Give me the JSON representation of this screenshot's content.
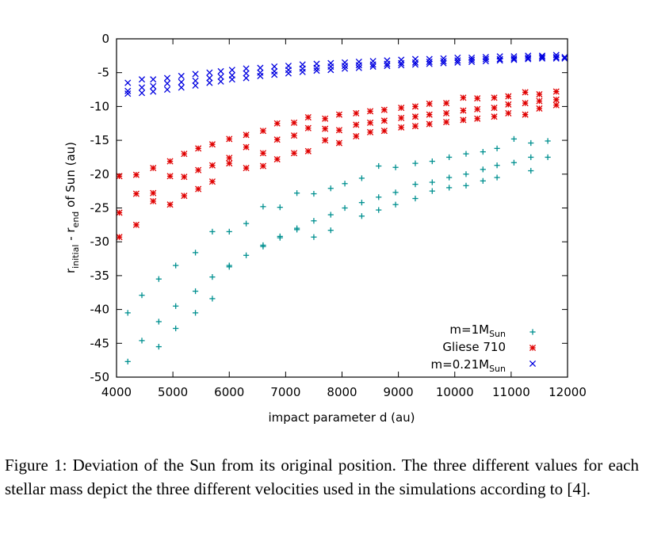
{
  "chart_data": {
    "type": "scatter",
    "xlabel": "impact parameter d (au)",
    "ylabel": {
      "main": "r",
      "sub1": "initial",
      "mid": " - r",
      "sub2": "end",
      "tail": " of Sun (au)"
    },
    "xlim": [
      4000,
      12000
    ],
    "ylim": [
      -50,
      0
    ],
    "xticks": [
      4000,
      5000,
      6000,
      7000,
      8000,
      9000,
      10000,
      11000,
      12000
    ],
    "yticks": [
      0,
      -5,
      -10,
      -15,
      -20,
      -25,
      -30,
      -35,
      -40,
      -45,
      -50
    ],
    "grid": false,
    "legend_position": "bottom-right",
    "series": [
      {
        "name": "m=1M",
        "name_sub": "Sun",
        "marker": "plus",
        "color": "#009090",
        "points": [
          [
            4200,
            -40.5
          ],
          [
            4200,
            -47.7
          ],
          [
            4450,
            -37.9
          ],
          [
            4450,
            -44.6
          ],
          [
            4750,
            -35.5
          ],
          [
            4750,
            -41.8
          ],
          [
            4750,
            -45.5
          ],
          [
            5050,
            -33.5
          ],
          [
            5050,
            -39.5
          ],
          [
            5050,
            -42.8
          ],
          [
            5400,
            -31.6
          ],
          [
            5400,
            -37.3
          ],
          [
            5400,
            -40.5
          ],
          [
            5700,
            -28.5
          ],
          [
            5700,
            -35.2
          ],
          [
            5700,
            -38.4
          ],
          [
            6000,
            -28.5
          ],
          [
            6000,
            -33.5
          ],
          [
            6000,
            -33.7
          ],
          [
            6300,
            -27.3
          ],
          [
            6300,
            -32.0
          ],
          [
            6600,
            -24.8
          ],
          [
            6600,
            -30.7
          ],
          [
            6600,
            -30.5
          ],
          [
            6900,
            -24.9
          ],
          [
            6900,
            -29.4
          ],
          [
            6900,
            -29.2
          ],
          [
            7200,
            -22.8
          ],
          [
            7200,
            -28.2
          ],
          [
            7200,
            -28.0
          ],
          [
            7500,
            -22.9
          ],
          [
            7500,
            -26.9
          ],
          [
            7500,
            -29.3
          ],
          [
            7800,
            -22.1
          ],
          [
            7800,
            -26.0
          ],
          [
            7800,
            -28.3
          ],
          [
            8050,
            -21.4
          ],
          [
            8050,
            -25.0
          ],
          [
            8350,
            -20.6
          ],
          [
            8350,
            -24.2
          ],
          [
            8350,
            -26.2
          ],
          [
            8650,
            -18.8
          ],
          [
            8650,
            -23.4
          ],
          [
            8650,
            -25.3
          ],
          [
            8950,
            -19.0
          ],
          [
            8950,
            -22.7
          ],
          [
            8950,
            -24.5
          ],
          [
            9300,
            -18.4
          ],
          [
            9300,
            -21.5
          ],
          [
            9300,
            -23.6
          ],
          [
            9600,
            -18.1
          ],
          [
            9600,
            -21.2
          ],
          [
            9600,
            -22.5
          ],
          [
            9900,
            -17.5
          ],
          [
            9900,
            -20.5
          ],
          [
            9900,
            -22.0
          ],
          [
            10200,
            -17.0
          ],
          [
            10200,
            -20.0
          ],
          [
            10200,
            -21.7
          ],
          [
            10500,
            -16.7
          ],
          [
            10500,
            -19.3
          ],
          [
            10500,
            -21.0
          ],
          [
            10750,
            -16.2
          ],
          [
            10750,
            -18.7
          ],
          [
            10750,
            -20.5
          ],
          [
            11050,
            -14.8
          ],
          [
            11050,
            -18.3
          ],
          [
            11350,
            -15.4
          ],
          [
            11350,
            -19.5
          ],
          [
            11350,
            -17.5
          ],
          [
            11650,
            -15.1
          ],
          [
            11650,
            -17.5
          ]
        ]
      },
      {
        "name": "Gliese 710",
        "marker": "star",
        "color": "#e00000",
        "points": [
          [
            4050,
            -20.3
          ],
          [
            4050,
            -25.7
          ],
          [
            4050,
            -29.3
          ],
          [
            4350,
            -20.1
          ],
          [
            4350,
            -22.9
          ],
          [
            4350,
            -27.5
          ],
          [
            4650,
            -19.1
          ],
          [
            4650,
            -22.8
          ],
          [
            4650,
            -24.0
          ],
          [
            4950,
            -18.1
          ],
          [
            4950,
            -20.3
          ],
          [
            4950,
            -24.5
          ],
          [
            5200,
            -17.0
          ],
          [
            5200,
            -20.4
          ],
          [
            5200,
            -23.2
          ],
          [
            5450,
            -16.2
          ],
          [
            5450,
            -19.4
          ],
          [
            5450,
            -22.2
          ],
          [
            5700,
            -15.6
          ],
          [
            5700,
            -18.7
          ],
          [
            5700,
            -21.1
          ],
          [
            6000,
            -14.8
          ],
          [
            6000,
            -17.6
          ],
          [
            6000,
            -18.4
          ],
          [
            6300,
            -14.2
          ],
          [
            6300,
            -16.0
          ],
          [
            6300,
            -19.1
          ],
          [
            6600,
            -13.6
          ],
          [
            6600,
            -16.9
          ],
          [
            6600,
            -18.8
          ],
          [
            6850,
            -12.5
          ],
          [
            6850,
            -14.9
          ],
          [
            6850,
            -17.8
          ],
          [
            7150,
            -12.4
          ],
          [
            7150,
            -14.3
          ],
          [
            7150,
            -16.9
          ],
          [
            7400,
            -11.6
          ],
          [
            7400,
            -13.2
          ],
          [
            7400,
            -16.6
          ],
          [
            7700,
            -11.8
          ],
          [
            7700,
            -13.3
          ],
          [
            7700,
            -15.0
          ],
          [
            7950,
            -11.2
          ],
          [
            7950,
            -13.5
          ],
          [
            7950,
            -15.4
          ],
          [
            8250,
            -11.0
          ],
          [
            8250,
            -12.7
          ],
          [
            8250,
            -14.4
          ],
          [
            8500,
            -10.7
          ],
          [
            8500,
            -12.4
          ],
          [
            8500,
            -13.8
          ],
          [
            8750,
            -10.5
          ],
          [
            8750,
            -12.1
          ],
          [
            8750,
            -13.6
          ],
          [
            9050,
            -10.2
          ],
          [
            9050,
            -11.7
          ],
          [
            9050,
            -13.1
          ],
          [
            9300,
            -10.0
          ],
          [
            9300,
            -11.5
          ],
          [
            9300,
            -12.9
          ],
          [
            9550,
            -9.6
          ],
          [
            9550,
            -11.2
          ],
          [
            9550,
            -12.6
          ],
          [
            9850,
            -9.5
          ],
          [
            9850,
            -11.0
          ],
          [
            9850,
            -12.3
          ],
          [
            10150,
            -8.7
          ],
          [
            10150,
            -10.6
          ],
          [
            10150,
            -12.0
          ],
          [
            10400,
            -8.8
          ],
          [
            10400,
            -10.4
          ],
          [
            10400,
            -11.8
          ],
          [
            10700,
            -8.7
          ],
          [
            10700,
            -10.2
          ],
          [
            10700,
            -11.5
          ],
          [
            10950,
            -8.5
          ],
          [
            10950,
            -9.7
          ],
          [
            10950,
            -11.0
          ],
          [
            11250,
            -7.9
          ],
          [
            11250,
            -9.5
          ],
          [
            11250,
            -11.2
          ],
          [
            11500,
            -8.2
          ],
          [
            11500,
            -9.2
          ],
          [
            11500,
            -10.3
          ],
          [
            11800,
            -7.8
          ],
          [
            11800,
            -9.0
          ],
          [
            11800,
            -9.8
          ]
        ]
      },
      {
        "name": "m=0.21M",
        "name_sub": "Sun",
        "marker": "cross",
        "color": "#0000e0",
        "points": [
          [
            4200,
            -6.5
          ],
          [
            4200,
            -7.7
          ],
          [
            4200,
            -8.1
          ],
          [
            4450,
            -6.0
          ],
          [
            4450,
            -7.2
          ],
          [
            4450,
            -8.0
          ],
          [
            4650,
            -6.0
          ],
          [
            4650,
            -7.0
          ],
          [
            4650,
            -7.8
          ],
          [
            4900,
            -5.8
          ],
          [
            4900,
            -6.6
          ],
          [
            4900,
            -7.5
          ],
          [
            5150,
            -5.5
          ],
          [
            5150,
            -6.4
          ],
          [
            5150,
            -7.2
          ],
          [
            5400,
            -5.2
          ],
          [
            5400,
            -6.2
          ],
          [
            5400,
            -6.9
          ],
          [
            5650,
            -5.0
          ],
          [
            5650,
            -5.8
          ],
          [
            5650,
            -6.5
          ],
          [
            5850,
            -4.8
          ],
          [
            5850,
            -5.6
          ],
          [
            5850,
            -6.3
          ],
          [
            6050,
            -4.6
          ],
          [
            6050,
            -5.4
          ],
          [
            6050,
            -6.0
          ],
          [
            6300,
            -4.4
          ],
          [
            6300,
            -5.1
          ],
          [
            6300,
            -5.8
          ],
          [
            6550,
            -4.3
          ],
          [
            6550,
            -5.0
          ],
          [
            6550,
            -5.5
          ],
          [
            6800,
            -4.1
          ],
          [
            6800,
            -4.8
          ],
          [
            6800,
            -5.3
          ],
          [
            7050,
            -4.0
          ],
          [
            7050,
            -4.6
          ],
          [
            7050,
            -5.1
          ],
          [
            7300,
            -3.8
          ],
          [
            7300,
            -4.4
          ],
          [
            7300,
            -4.9
          ],
          [
            7550,
            -3.7
          ],
          [
            7550,
            -4.3
          ],
          [
            7550,
            -4.7
          ],
          [
            7800,
            -3.6
          ],
          [
            7800,
            -4.1
          ],
          [
            7800,
            -4.6
          ],
          [
            8050,
            -3.5
          ],
          [
            8050,
            -4.0
          ],
          [
            8050,
            -4.4
          ],
          [
            8300,
            -3.4
          ],
          [
            8300,
            -3.9
          ],
          [
            8300,
            -4.3
          ],
          [
            8550,
            -3.3
          ],
          [
            8550,
            -3.8
          ],
          [
            8550,
            -4.1
          ],
          [
            8800,
            -3.2
          ],
          [
            8800,
            -3.7
          ],
          [
            8800,
            -4.0
          ],
          [
            9050,
            -3.1
          ],
          [
            9050,
            -3.6
          ],
          [
            9050,
            -3.9
          ],
          [
            9300,
            -3.0
          ],
          [
            9300,
            -3.5
          ],
          [
            9300,
            -3.8
          ],
          [
            9550,
            -3.0
          ],
          [
            9550,
            -3.4
          ],
          [
            9550,
            -3.7
          ],
          [
            9800,
            -2.9
          ],
          [
            9800,
            -3.3
          ],
          [
            9800,
            -3.6
          ],
          [
            10050,
            -2.8
          ],
          [
            10050,
            -3.2
          ],
          [
            10050,
            -3.5
          ],
          [
            10300,
            -2.8
          ],
          [
            10300,
            -3.1
          ],
          [
            10300,
            -3.4
          ],
          [
            10550,
            -2.7
          ],
          [
            10550,
            -3.0
          ],
          [
            10550,
            -3.3
          ],
          [
            10800,
            -2.6
          ],
          [
            10800,
            -3.0
          ],
          [
            10800,
            -3.2
          ],
          [
            11050,
            -2.6
          ],
          [
            11050,
            -2.9
          ],
          [
            11050,
            -3.1
          ],
          [
            11300,
            -2.5
          ],
          [
            11300,
            -2.8
          ],
          [
            11300,
            -3.0
          ],
          [
            11550,
            -2.5
          ],
          [
            11550,
            -2.7
          ],
          [
            11550,
            -2.9
          ],
          [
            11800,
            -2.4
          ],
          [
            11800,
            -2.7
          ],
          [
            11800,
            -2.9
          ],
          [
            11950,
            -2.7
          ],
          [
            11950,
            -2.9
          ]
        ]
      }
    ]
  },
  "caption": "Figure 1: Deviation of the Sun from its original position. The three different values for each stellar mass depict the three different velocities used in the simulations according to [4]."
}
